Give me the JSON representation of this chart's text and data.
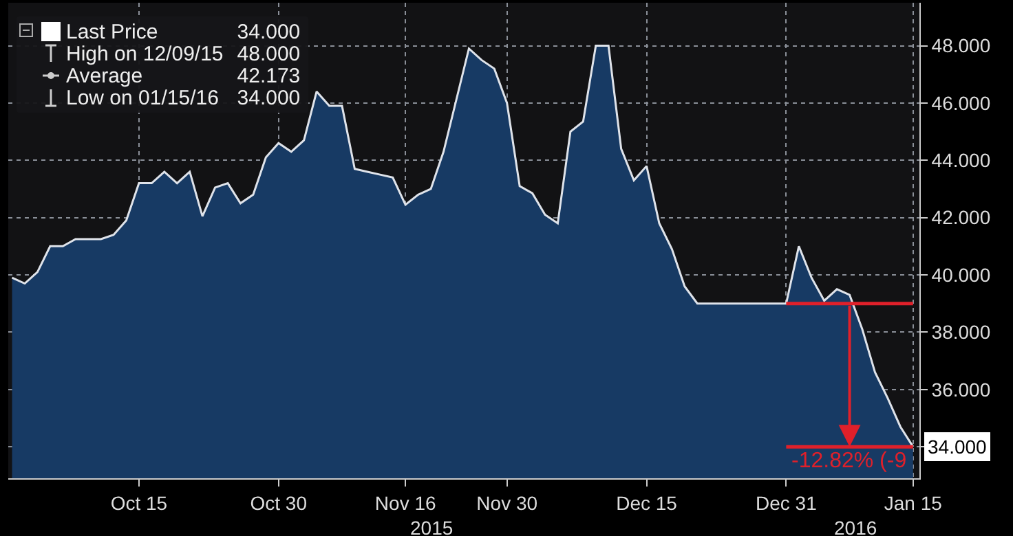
{
  "chart_data": {
    "type": "area",
    "categories": [
      null,
      null,
      null,
      null,
      null,
      null,
      null,
      null,
      null,
      null,
      "Oct 15",
      null,
      null,
      null,
      null,
      null,
      null,
      null,
      null,
      null,
      null,
      "Oct 30",
      null,
      null,
      null,
      null,
      null,
      null,
      null,
      null,
      null,
      "Nov 16",
      null,
      null,
      null,
      null,
      null,
      null,
      null,
      "Nov 30",
      null,
      null,
      null,
      null,
      null,
      null,
      null,
      null,
      null,
      null,
      "Dec 15",
      null,
      null,
      null,
      null,
      null,
      null,
      null,
      null,
      null,
      null,
      "Dec 31",
      null,
      null,
      null,
      null,
      null,
      null,
      null,
      null,
      null,
      "Jan 15"
    ],
    "series": [
      {
        "name": "Last Price",
        "color": "#173a64",
        "values": [
          39.9,
          39.7,
          40.1,
          41.0,
          41.0,
          41.25,
          41.25,
          41.25,
          41.4,
          41.9,
          43.2,
          43.2,
          43.6,
          43.2,
          43.6,
          42.05,
          43.05,
          43.2,
          42.5,
          42.8,
          44.1,
          44.6,
          44.3,
          44.7,
          46.4,
          45.9,
          45.9,
          43.7,
          43.6,
          43.5,
          43.4,
          42.45,
          42.8,
          43.0,
          44.3,
          46.1,
          47.9,
          47.5,
          47.2,
          46.0,
          43.1,
          42.85,
          42.1,
          41.8,
          45.0,
          45.35,
          48.0,
          48.0,
          44.4,
          43.3,
          43.8,
          41.8,
          40.9,
          39.6,
          39.0,
          39.0,
          39.0,
          39.0,
          39.0,
          39.0,
          39.0,
          39.0,
          41.0,
          39.9,
          39.1,
          39.5,
          39.3,
          38.1,
          36.6,
          35.7,
          34.7,
          34.0
        ]
      }
    ],
    "ylim": [
      32.9,
      49.5
    ],
    "yticks": [
      {
        "value": 34,
        "label": null
      },
      {
        "value": 36,
        "label": "36.000"
      },
      {
        "value": 38,
        "label": "38.000"
      },
      {
        "value": 40,
        "label": "40.000"
      },
      {
        "value": 42,
        "label": "42.000"
      },
      {
        "value": 44,
        "label": "44.000"
      },
      {
        "value": 46,
        "label": "46.000"
      },
      {
        "value": 48,
        "label": "48.000"
      }
    ],
    "grid": true,
    "legend": "top left",
    "ref_lines": [
      {
        "axis": "y",
        "value": 39,
        "color": "#e0202a"
      },
      {
        "axis": "y",
        "value": 34,
        "color": "#e0202a"
      }
    ],
    "annotations": [
      "34.000",
      "High on 12/09/15 48.000",
      "Average 42.173",
      "Low on 01/15/16 34.000",
      "2015",
      "2016",
      {
        "text": "-12.82% (-9",
        "x": "Dec 31",
        "y": 34
      },
      {
        "text": "34.000",
        "x": "Jan 15",
        "y": 34
      }
    ]
  }
}
